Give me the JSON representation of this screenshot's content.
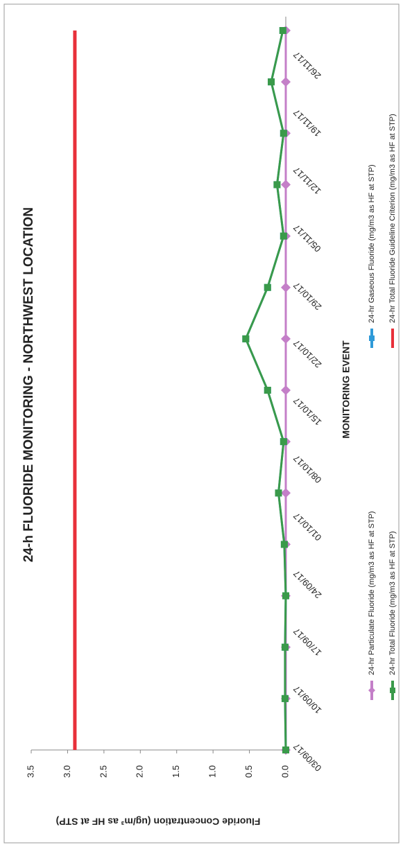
{
  "chart_data": {
    "type": "line",
    "title": "24-h FLUORIDE MONITORING - NORTHWEST LOCATION",
    "x_label": "MONITORING EVENT",
    "y_label": "Fluoride Concentration (ug/m³ as HF at STP)",
    "xticks": [
      "03/09/17",
      "10/09/17",
      "17/09/17",
      "24/09/17",
      "01/10/17",
      "08/10/17",
      "15/10/17",
      "22/10/17",
      "29/10/17",
      "05/11/17",
      "12/11/17",
      "19/11/17",
      "26/11/17"
    ],
    "ylim": [
      0,
      3.5
    ],
    "yticks": [
      {
        "value": 0,
        "label": "0.0"
      },
      {
        "value": 0.5,
        "label": "0.5"
      },
      {
        "value": 1,
        "label": "1.0"
      },
      {
        "value": 1.5,
        "label": "1.5"
      },
      {
        "value": 2,
        "label": "2.0"
      },
      {
        "value": 2.5,
        "label": "2.5"
      },
      {
        "value": 3,
        "label": "3.0"
      },
      {
        "value": 3.5,
        "label": "3.5"
      }
    ],
    "grid": false,
    "series": [
      {
        "name": "24-hr Particulate Fluoride (mg/m3 as HF at STP)",
        "color": "#c47fc8",
        "marker": "diamond",
        "values": [
          0,
          0,
          0,
          0,
          0,
          0,
          0,
          0,
          0,
          0,
          0,
          0,
          0,
          0,
          0
        ]
      },
      {
        "name": "24-hr Gaseous Fluoride (mg/m3 as HF at STP)",
        "color": "#2f9ad8",
        "marker": "square",
        "values": [
          0.0,
          0.01,
          0.01,
          0.0,
          0.02,
          0.1,
          0.03,
          0.25,
          0.55,
          0.25,
          0.03,
          0.12,
          0.03,
          0.2,
          0.04
        ]
      },
      {
        "name": "24-hr Total Fluoride (mg/m3 as HF at STP)",
        "color": "#3a9a4a",
        "marker": "square",
        "values": [
          0.0,
          0.01,
          0.01,
          0.0,
          0.02,
          0.1,
          0.03,
          0.25,
          0.55,
          0.25,
          0.03,
          0.12,
          0.03,
          0.2,
          0.04
        ]
      },
      {
        "name": "24-hr Total Fluoride Guideline Criterion (mg/m3 as HF at STP)",
        "color": "#e8303a",
        "marker": "none",
        "values": [
          2.9,
          2.9,
          2.9,
          2.9,
          2.9,
          2.9,
          2.9,
          2.9,
          2.9,
          2.9,
          2.9,
          2.9,
          2.9,
          2.9,
          2.9
        ]
      }
    ]
  }
}
